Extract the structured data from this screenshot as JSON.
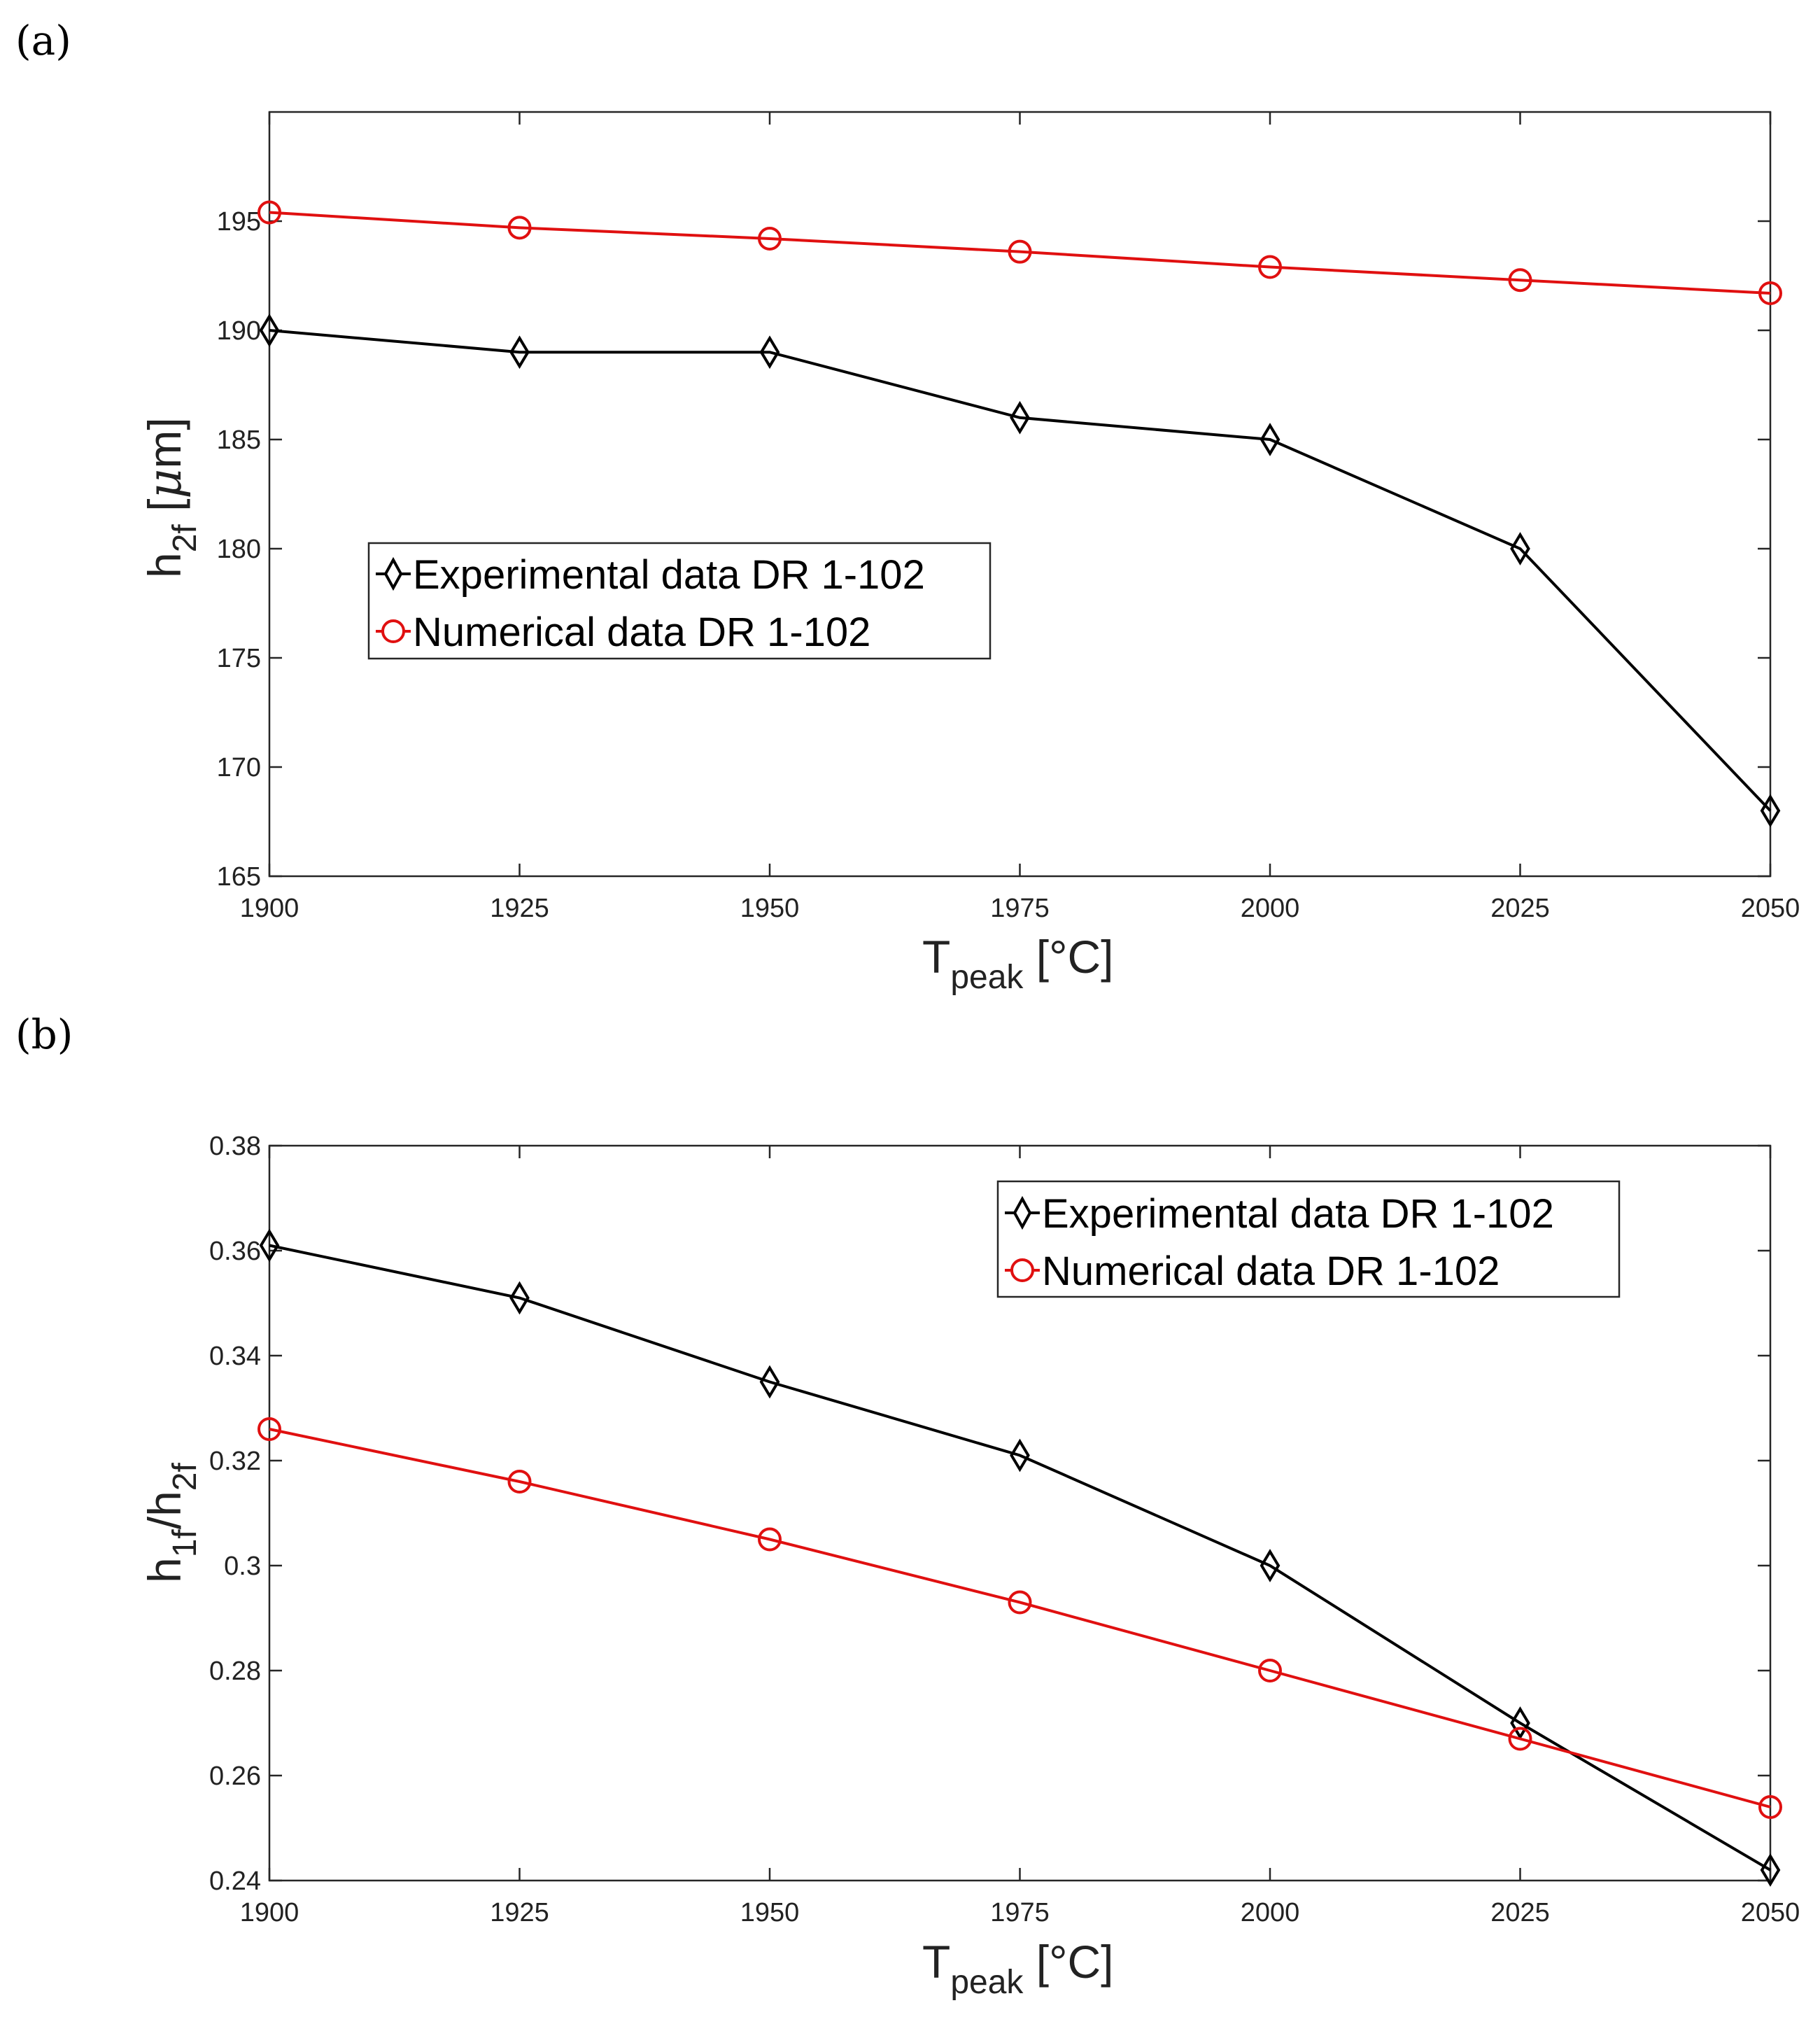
{
  "chart_data": [
    {
      "type": "line",
      "panel_label": "(a)",
      "x": [
        1900,
        1925,
        1950,
        1975,
        2000,
        2025,
        2050
      ],
      "xlim": [
        1900,
        2050
      ],
      "ylim": [
        165,
        200
      ],
      "x_ticks": [
        1900,
        1925,
        1950,
        1975,
        2000,
        2025,
        2050
      ],
      "y_ticks": [
        165,
        170,
        175,
        180,
        185,
        190,
        195
      ],
      "x_tick_labels": [
        "1900",
        "1925",
        "1950",
        "1975",
        "2000",
        "2025",
        "2050"
      ],
      "y_tick_labels": [
        "165",
        "170",
        "175",
        "180",
        "185",
        "190",
        "195"
      ],
      "xlabel": {
        "main": "T",
        "sub": "peak",
        "unit": " [°C]"
      },
      "ylabel": {
        "main": "h",
        "sub": "2f",
        "unit": " [",
        "greek": "μ",
        "unit2": "m]"
      },
      "legend_position": "middle-left",
      "grid": false,
      "series": [
        {
          "name": "Experimental data DR 1-102",
          "color": "#000000",
          "marker": "diamond",
          "values": [
            190,
            189,
            189,
            186,
            185,
            180,
            168
          ]
        },
        {
          "name": "Numerical data DR 1-102",
          "color": "#e01010",
          "marker": "circle",
          "values": [
            195.4,
            194.7,
            194.2,
            193.6,
            192.9,
            192.3,
            191.7
          ]
        }
      ]
    },
    {
      "type": "line",
      "panel_label": "(b)",
      "x": [
        1900,
        1925,
        1950,
        1975,
        2000,
        2025,
        2050
      ],
      "xlim": [
        1900,
        2050
      ],
      "ylim": [
        0.24,
        0.38
      ],
      "x_ticks": [
        1900,
        1925,
        1950,
        1975,
        2000,
        2025,
        2050
      ],
      "y_ticks": [
        0.24,
        0.26,
        0.28,
        0.3,
        0.32,
        0.34,
        0.36,
        0.38
      ],
      "x_tick_labels": [
        "1900",
        "1925",
        "1950",
        "1975",
        "2000",
        "2025",
        "2050"
      ],
      "y_tick_labels": [
        "0.24",
        "0.26",
        "0.28",
        "0.3",
        "0.32",
        "0.34",
        "0.36",
        "0.38"
      ],
      "xlabel": {
        "main": "T",
        "sub": "peak",
        "unit": " [°C]"
      },
      "ylabel": {
        "main": "h",
        "sub": "1f",
        "unit": "/h",
        "sub2": "2f"
      },
      "legend_position": "top-right",
      "grid": false,
      "series": [
        {
          "name": "Experimental data DR 1-102",
          "color": "#000000",
          "marker": "diamond",
          "values": [
            0.361,
            0.351,
            0.335,
            0.321,
            0.3,
            0.27,
            0.242
          ]
        },
        {
          "name": "Numerical data DR 1-102",
          "color": "#e01010",
          "marker": "circle",
          "values": [
            0.326,
            0.316,
            0.305,
            0.293,
            0.28,
            0.267,
            0.254
          ]
        }
      ]
    }
  ]
}
